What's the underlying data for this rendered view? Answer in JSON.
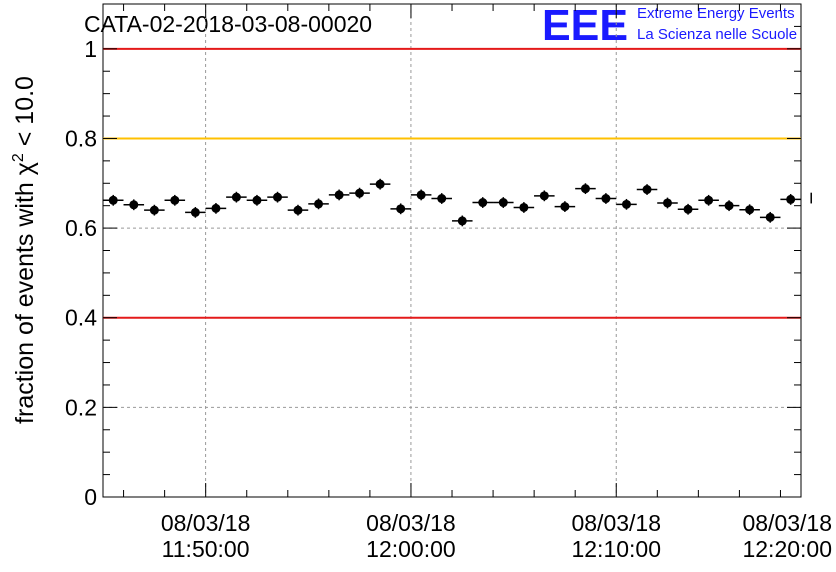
{
  "header": {
    "run_title": "CATA-02-2018-03-08-00020",
    "logo_text": "EEE",
    "logo_line1": "Extreme Energy Events",
    "logo_line2": "La Scienza nelle Scuole",
    "logo_color": "#1a1aff"
  },
  "chart_data": {
    "type": "scatter",
    "title": "CATA-02-2018-03-08-00020",
    "xlabel": "",
    "ylabel_prefix": "fraction of events with ",
    "ylabel_symbol": "χ",
    "ylabel_sup": "2",
    "ylabel_suffix": " < 10.0",
    "ylim": [
      0,
      1.1
    ],
    "y_ticks": [
      0,
      0.2,
      0.4,
      0.6,
      0.8,
      1
    ],
    "y_tick_labels": [
      "0",
      "0.2",
      "0.4",
      "0.6",
      "0.8",
      "1"
    ],
    "x_unit": "minutes",
    "xlim": [
      11.75,
      12.3167
    ],
    "x_ticks": [
      {
        "value": 11.8333,
        "date": "08/03/18",
        "time": "11:50:00"
      },
      {
        "value": 12.0,
        "date": "08/03/18",
        "time": "12:00:00"
      },
      {
        "value": 12.1667,
        "date": "08/03/18",
        "time": "12:10:00"
      },
      {
        "value": 12.3333,
        "date": "08/03/18",
        "time": "12:20:00"
      }
    ],
    "grid": true,
    "reference_lines": [
      {
        "y": 1.0,
        "color": "#e41a1a"
      },
      {
        "y": 0.8,
        "color": "#ffc000"
      },
      {
        "y": 0.4,
        "color": "#e41a1a"
      }
    ],
    "bin_width_hours": 0.01667,
    "point_color": "#000000",
    "series": [
      {
        "x": [
          11.7583,
          11.775,
          11.7917,
          11.8083,
          11.825,
          11.8417,
          11.8583,
          11.875,
          11.8917,
          11.9083,
          11.925,
          11.9417,
          11.9583,
          11.975,
          11.9917,
          12.0083,
          12.025,
          12.0417,
          12.0583,
          12.075,
          12.0917,
          12.1083,
          12.125,
          12.1417,
          12.1583,
          12.175,
          12.1917,
          12.2083,
          12.225,
          12.2417,
          12.2583,
          12.275,
          12.2917,
          12.3083,
          12.325
        ],
        "values": [
          0.662,
          0.652,
          0.64,
          0.662,
          0.635,
          0.644,
          0.669,
          0.662,
          0.669,
          0.64,
          0.654,
          0.674,
          0.678,
          0.698,
          0.643,
          0.674,
          0.666,
          0.616,
          0.657,
          0.657,
          0.646,
          0.672,
          0.648,
          0.688,
          0.666,
          0.653,
          0.686,
          0.656,
          0.642,
          0.662,
          0.65,
          0.641,
          0.624,
          0.664,
          0.667
        ],
        "errors": [
          0.012,
          0.012,
          0.012,
          0.012,
          0.012,
          0.012,
          0.012,
          0.012,
          0.012,
          0.012,
          0.012,
          0.012,
          0.012,
          0.012,
          0.012,
          0.012,
          0.012,
          0.012,
          0.012,
          0.012,
          0.012,
          0.012,
          0.012,
          0.012,
          0.012,
          0.012,
          0.012,
          0.012,
          0.012,
          0.012,
          0.012,
          0.012,
          0.012,
          0.012,
          0.012
        ]
      }
    ]
  }
}
